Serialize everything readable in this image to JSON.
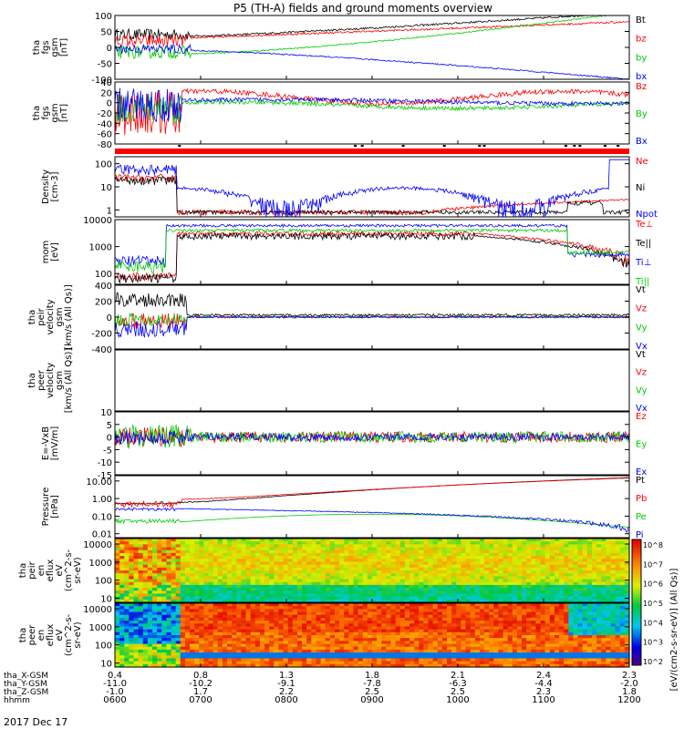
{
  "title": "P5 (TH-A) fields and ground moments overview",
  "date_label": "2017 Dec 17",
  "colorbar_label": "[eV/(cm2-s-sr-eV)] (All Qs)]",
  "colorbar_ticks": [
    "10^8",
    "10^7",
    "10^6",
    "10^5",
    "10^4",
    "10^3",
    "10^2"
  ],
  "footer": {
    "row_labels": [
      "tha_X-GSM",
      "tha_Y-GSM",
      "tha_Z-GSM",
      "hhmm"
    ],
    "columns": [
      {
        "x": "0.4",
        "y": "-11.0",
        "z": "-1.0",
        "t": "0600"
      },
      {
        "x": "0.8",
        "y": "-10.2",
        "z": "1.7",
        "t": "0700"
      },
      {
        "x": "1.3",
        "y": "-9.1",
        "z": "2.2",
        "t": "0800"
      },
      {
        "x": "1.8",
        "y": "-7.8",
        "z": "2.5",
        "t": "0900"
      },
      {
        "x": "2.1",
        "y": "-6.3",
        "z": "2.5",
        "t": "1000"
      },
      {
        "x": "2.4",
        "y": "-4.4",
        "z": "2.3",
        "t": "1100"
      },
      {
        "x": "2.3",
        "y": "-2.0",
        "z": "1.8",
        "t": "1200"
      }
    ]
  },
  "chart_data": [
    {
      "type": "line",
      "ylabel": [
        "tha",
        "fgs",
        "gsm",
        "[nT]"
      ],
      "ylim": [
        -100,
        100
      ],
      "yticks": [
        "100",
        "50",
        "0",
        "-50",
        "-100"
      ],
      "series": [
        {
          "name": "Bt",
          "color": "#000000"
        },
        {
          "name": "bz",
          "color": "#ff0000"
        },
        {
          "name": "by",
          "color": "#00cc00"
        },
        {
          "name": "bx",
          "color": "#0000ff"
        }
      ]
    },
    {
      "type": "line",
      "ylabel": [
        "tha",
        "fgs",
        "gsm",
        "[nT]"
      ],
      "ylim": [
        -80,
        40
      ],
      "yticks": [
        "40",
        "20",
        "0",
        "-20",
        "-40",
        "-60",
        "-80"
      ],
      "series": [
        {
          "name": "Bz",
          "color": "#ff0000"
        },
        {
          "name": "By",
          "color": "#00cc00"
        },
        {
          "name": "Bx",
          "color": "#0000ff"
        }
      ]
    },
    {
      "type": "line",
      "ylabel": [
        "Density",
        "[cm-3]"
      ],
      "scale": "log",
      "ylim": [
        0.5,
        200
      ],
      "yticks": [
        "100",
        "10",
        "1"
      ],
      "series": [
        {
          "name": "Ne",
          "color": "#ff0000"
        },
        {
          "name": "Ni",
          "color": "#000000"
        },
        {
          "name": "Npot",
          "color": "#0000ff"
        }
      ]
    },
    {
      "type": "line",
      "ylabel": [
        "mom",
        "[eV]"
      ],
      "scale": "log",
      "ylim": [
        40,
        10000
      ],
      "yticks": [
        "10000",
        "1000",
        "100"
      ],
      "series": [
        {
          "name": "Te⊥",
          "color": "#ff0000"
        },
        {
          "name": "Te||",
          "color": "#000000"
        },
        {
          "name": "Ti⊥",
          "color": "#0000ff"
        },
        {
          "name": "Ti||",
          "color": "#00cc00"
        }
      ]
    },
    {
      "type": "line",
      "ylabel": [
        "tha",
        "peir",
        "velocity",
        "gsm",
        "[km/s (All Qs)]"
      ],
      "ylim": [
        -400,
        400
      ],
      "yticks": [
        "400",
        "200",
        "0",
        "-200",
        "-400"
      ],
      "series": [
        {
          "name": "Vt",
          "color": "#000000"
        },
        {
          "name": "Vz",
          "color": "#ff0000"
        },
        {
          "name": "Vy",
          "color": "#00cc00"
        },
        {
          "name": "Vx",
          "color": "#0000ff"
        }
      ]
    },
    {
      "type": "line",
      "ylabel": [
        "tha",
        "peer",
        "velocity",
        "gsm",
        "[km/s (All Qs)]"
      ],
      "ylim": [
        0,
        1
      ],
      "yticks": [],
      "series": [
        {
          "name": "Vt",
          "color": "#000000"
        },
        {
          "name": "Vz",
          "color": "#ff0000"
        },
        {
          "name": "Vy",
          "color": "#00cc00"
        },
        {
          "name": "Vx",
          "color": "#0000ff"
        }
      ]
    },
    {
      "type": "line",
      "ylabel": [
        "E=-VxB",
        "[mV/m]"
      ],
      "ylim": [
        -15,
        10
      ],
      "yticks": [
        "10",
        "5",
        "0",
        "-5",
        "-10",
        "-15"
      ],
      "series": [
        {
          "name": "Ez",
          "color": "#ff0000"
        },
        {
          "name": "Ey",
          "color": "#00cc00"
        },
        {
          "name": "Ex",
          "color": "#0000ff"
        }
      ]
    },
    {
      "type": "line",
      "ylabel": [
        "Pressure",
        "[nPa]"
      ],
      "scale": "log",
      "ylim": [
        0.006,
        20
      ],
      "yticks": [
        "10.00",
        "1.00",
        "0.10",
        "0.01"
      ],
      "series": [
        {
          "name": "Pt",
          "color": "#000000"
        },
        {
          "name": "Pb",
          "color": "#ff0000"
        },
        {
          "name": "Pe",
          "color": "#00cc00"
        },
        {
          "name": "Pi",
          "color": "#0000ff"
        }
      ]
    },
    {
      "type": "heatmap",
      "ylabel": [
        "tha",
        "peir",
        "en",
        "eflux",
        "eV",
        "(cm^2-s-",
        "sr-eV)"
      ],
      "scale": "log",
      "ylim": [
        6,
        20000
      ],
      "yticks": [
        "10000",
        "1000",
        "100",
        "10"
      ]
    },
    {
      "type": "heatmap",
      "ylabel": [
        "tha",
        "peer",
        "en",
        "eflux",
        "eV",
        "(cm^2-s-",
        "sr-eV)"
      ],
      "scale": "log",
      "ylim": [
        6,
        20000
      ],
      "yticks": [
        "10000",
        "1000",
        "100",
        "10"
      ]
    }
  ]
}
